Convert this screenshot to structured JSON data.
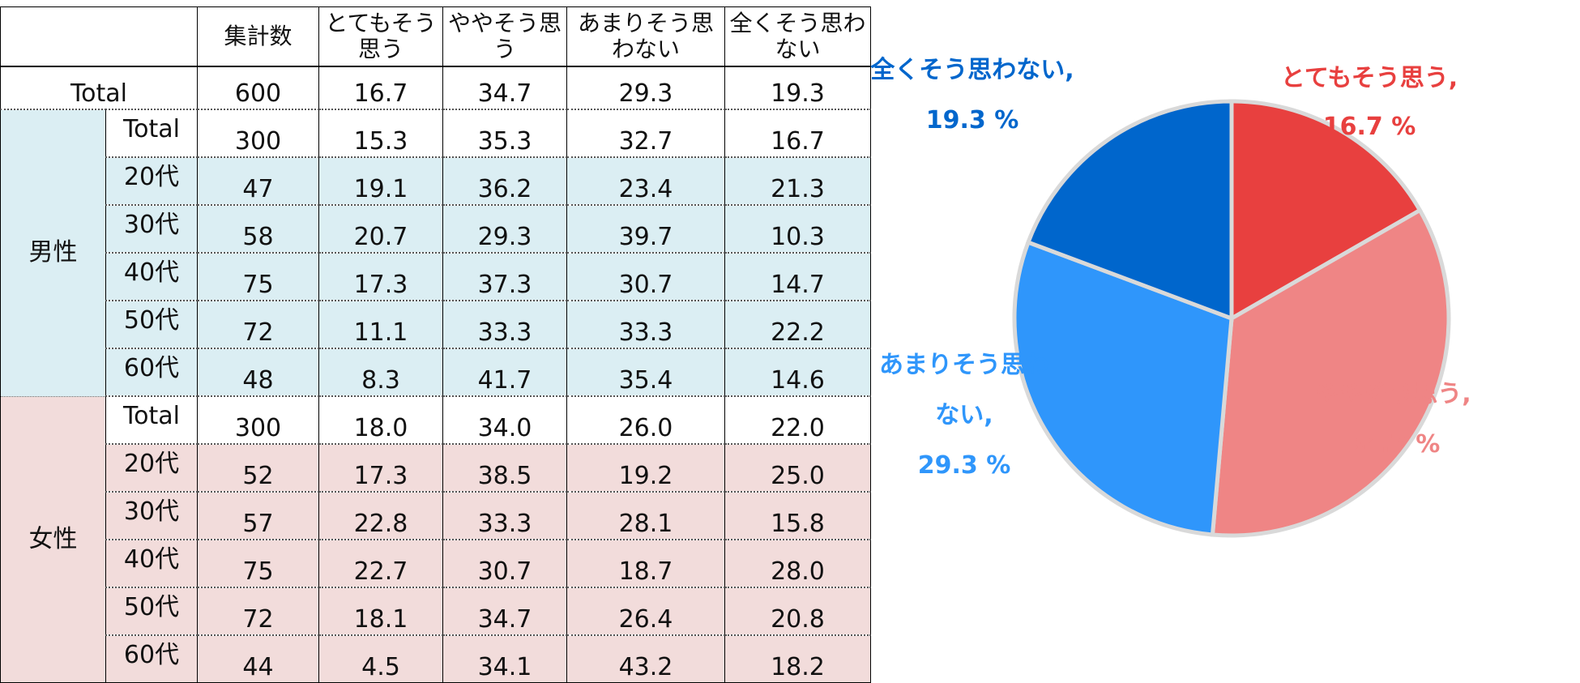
{
  "table": {
    "headers": [
      "集計数",
      "とてもそう思う",
      "ややそう思う",
      "あまりそう思わない",
      "全くそう思わない"
    ],
    "grand_total": {
      "label": "Total",
      "values": [
        "600",
        "16.7",
        "34.7",
        "29.3",
        "19.3"
      ]
    },
    "groups": [
      {
        "name": "男性",
        "rows": [
          {
            "label": "Total",
            "values": [
              "300",
              "15.3",
              "35.3",
              "32.7",
              "16.7"
            ]
          },
          {
            "label": "20代",
            "values": [
              "47",
              "19.1",
              "36.2",
              "23.4",
              "21.3"
            ]
          },
          {
            "label": "30代",
            "values": [
              "58",
              "20.7",
              "29.3",
              "39.7",
              "10.3"
            ]
          },
          {
            "label": "40代",
            "values": [
              "75",
              "17.3",
              "37.3",
              "30.7",
              "14.7"
            ]
          },
          {
            "label": "50代",
            "values": [
              "72",
              "11.1",
              "33.3",
              "33.3",
              "22.2"
            ]
          },
          {
            "label": "60代",
            "values": [
              "48",
              "8.3",
              "41.7",
              "35.4",
              "14.6"
            ]
          }
        ]
      },
      {
        "name": "女性",
        "rows": [
          {
            "label": "Total",
            "values": [
              "300",
              "18.0",
              "34.0",
              "26.0",
              "22.0"
            ]
          },
          {
            "label": "20代",
            "values": [
              "52",
              "17.3",
              "38.5",
              "19.2",
              "25.0"
            ]
          },
          {
            "label": "30代",
            "values": [
              "57",
              "22.8",
              "33.3",
              "28.1",
              "15.8"
            ]
          },
          {
            "label": "40代",
            "values": [
              "75",
              "22.7",
              "30.7",
              "18.7",
              "28.0"
            ]
          },
          {
            "label": "50代",
            "values": [
              "72",
              "18.1",
              "34.7",
              "26.4",
              "20.8"
            ]
          },
          {
            "label": "60代",
            "values": [
              "44",
              "4.5",
              "34.1",
              "43.2",
              "18.2"
            ]
          }
        ]
      }
    ]
  },
  "chart_data": {
    "type": "pie",
    "slices": [
      {
        "name": "とてもそう思う",
        "value": 16.7,
        "label_lines": [
          "とてもそう思う,",
          "16.7 %"
        ],
        "color": "#e8403f"
      },
      {
        "name": "ややそう思う",
        "value": 34.7,
        "label_lines": [
          "ややそう思う,",
          "34.7 %"
        ],
        "color": "#ef8585"
      },
      {
        "name": "あまりそう思わない",
        "value": 29.3,
        "label_lines": [
          "あまりそう思わ",
          "ない,",
          "29.3 %"
        ],
        "color": "#2f96fb"
      },
      {
        "name": "全くそう思わない",
        "value": 19.3,
        "label_lines": [
          "全くそう思わない,",
          "19.3 %"
        ],
        "color": "#0066cc"
      }
    ],
    "start_angle_deg": 0,
    "direction": "clockwise",
    "slice_border_color": "#d9d9d9"
  }
}
